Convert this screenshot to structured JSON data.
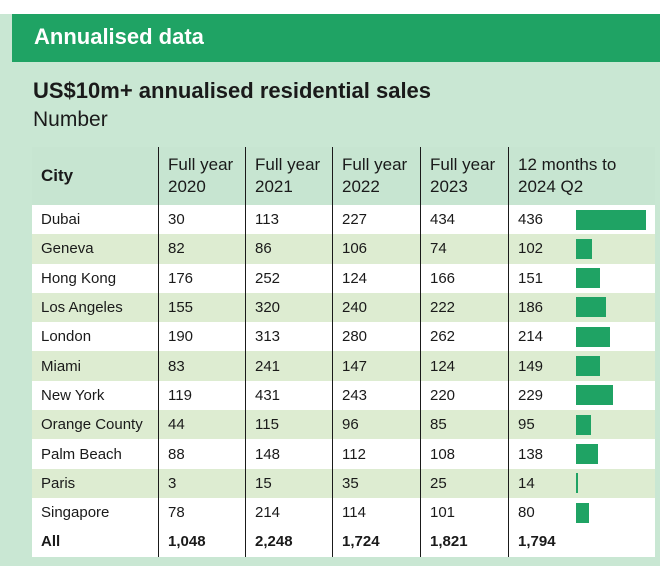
{
  "banner": {
    "title": "Annualised data"
  },
  "chart_data": {
    "type": "table",
    "title": "US$10m+ annualised residential sales",
    "subtitle": "Number",
    "columns": [
      {
        "label": "City"
      },
      {
        "label": "Full year 2020",
        "line1": "Full year",
        "line2": "2020"
      },
      {
        "label": "Full year 2021",
        "line1": "Full year",
        "line2": "2021"
      },
      {
        "label": "Full year 2022",
        "line1": "Full year",
        "line2": "2022"
      },
      {
        "label": "Full year 2023",
        "line1": "Full year",
        "line2": "2023"
      },
      {
        "label": "12 months to 2024 Q2",
        "line1": "12 months to",
        "line2": "2024 Q2"
      }
    ],
    "rows": [
      {
        "city": "Dubai",
        "values": [
          "30",
          "113",
          "227",
          "434",
          "436"
        ]
      },
      {
        "city": "Geneva",
        "values": [
          "82",
          "86",
          "106",
          "74",
          "102"
        ]
      },
      {
        "city": "Hong Kong",
        "values": [
          "176",
          "252",
          "124",
          "166",
          "151"
        ]
      },
      {
        "city": "Los Angeles",
        "values": [
          "155",
          "320",
          "240",
          "222",
          "186"
        ]
      },
      {
        "city": "London",
        "values": [
          "190",
          "313",
          "280",
          "262",
          "214"
        ]
      },
      {
        "city": "Miami",
        "values": [
          "83",
          "241",
          "147",
          "124",
          "149"
        ]
      },
      {
        "city": "New York",
        "values": [
          "119",
          "431",
          "243",
          "220",
          "229"
        ]
      },
      {
        "city": "Orange County",
        "values": [
          "44",
          "115",
          "96",
          "85",
          "95"
        ]
      },
      {
        "city": "Palm Beach",
        "values": [
          "88",
          "148",
          "112",
          "108",
          "138"
        ]
      },
      {
        "city": "Paris",
        "values": [
          "3",
          "15",
          "35",
          "25",
          "14"
        ]
      },
      {
        "city": "Singapore",
        "values": [
          "78",
          "214",
          "114",
          "101",
          "80"
        ]
      }
    ],
    "total": {
      "city": "All",
      "values": [
        "1,048",
        "2,248",
        "1,724",
        "1,821",
        "1,794"
      ]
    },
    "bar_series": {
      "name": "12 months to 2024 Q2",
      "values": [
        436,
        102,
        151,
        186,
        214,
        149,
        229,
        95,
        138,
        14,
        80
      ],
      "max": 436
    }
  },
  "colors": {
    "accent": "#1fa364",
    "background": "#c9e7d3",
    "row_alt": "#ddecd1",
    "row_white": "#ffffff"
  }
}
